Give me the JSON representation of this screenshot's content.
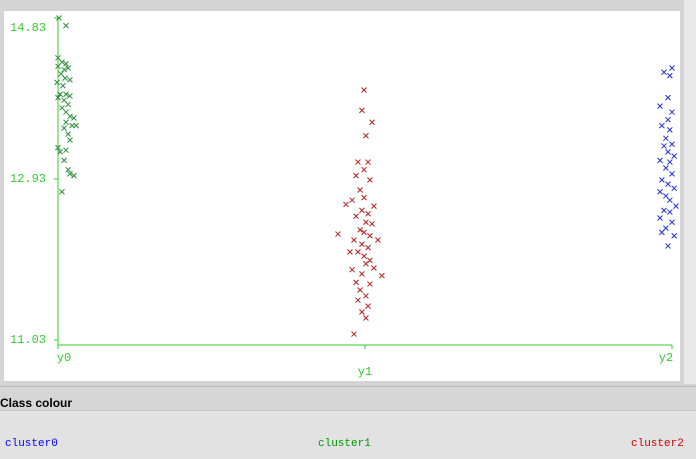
{
  "chart_data": {
    "type": "scatter",
    "xlim": [
      0,
      2
    ],
    "ylim": [
      11.03,
      14.83
    ],
    "xticks": [
      {
        "value": 0,
        "label": "y0"
      },
      {
        "value": 1,
        "label": "y1"
      },
      {
        "value": 2,
        "label": "y2"
      }
    ],
    "yticks": [
      11.03,
      12.93,
      14.83
    ],
    "axis_color": "#33cc33",
    "series": [
      {
        "color": "#2e8b3a",
        "x": [
          0.003,
          0.026,
          0,
          0.013,
          0.026,
          0,
          0.02,
          0.033,
          0.01,
          0.023,
          0.039,
          -0.003,
          0.016,
          0.007,
          0.026,
          0.039,
          0,
          0.02,
          0.033,
          0.013,
          0.026,
          0.039,
          0.052,
          0.026,
          0.02,
          0.046,
          0.059,
          0.033,
          0.039,
          0,
          0.007,
          0.026,
          0.02,
          0.033,
          0.052,
          0.039,
          0.013
        ],
        "values": [
          14.83,
          14.74,
          14.36,
          14.31,
          14.29,
          14.26,
          14.22,
          14.24,
          14.17,
          14.12,
          14.1,
          14.07,
          14.03,
          13.93,
          13.93,
          13.91,
          13.89,
          13.86,
          13.81,
          13.77,
          13.72,
          13.67,
          13.65,
          13.6,
          13.53,
          13.56,
          13.56,
          13.46,
          13.39,
          13.3,
          13.25,
          13.27,
          13.15,
          13.04,
          12.97,
          12.99,
          12.78
        ]
      },
      {
        "color": "#b22222",
        "x": [
          0.997,
          0.99,
          1.023,
          1.003,
          0.977,
          1.01,
          0.997,
          0.971,
          1.016,
          0.984,
          0.958,
          0.997,
          0.938,
          1.029,
          0.99,
          1.01,
          0.971,
          1.003,
          1.023,
          0.984,
          0.997,
          0.912,
          1.016,
          1.042,
          0.964,
          0.99,
          1.01,
          0.951,
          0.977,
          0.997,
          1.016,
          1.003,
          1.029,
          0.958,
          1.055,
          0.99,
          0.971,
          1.016,
          0.984,
          1.003,
          0.977,
          1.01,
          0.99,
          1.003,
          0.964
        ],
        "values": [
          13.98,
          13.74,
          13.6,
          13.44,
          13.13,
          13.13,
          13.04,
          12.97,
          12.92,
          12.8,
          12.68,
          12.71,
          12.63,
          12.61,
          12.56,
          12.52,
          12.49,
          12.42,
          12.4,
          12.33,
          12.3,
          12.28,
          12.26,
          12.21,
          12.21,
          12.16,
          12.12,
          12.07,
          12.07,
          12.02,
          11.97,
          11.93,
          11.88,
          11.86,
          11.79,
          11.81,
          11.71,
          11.69,
          11.62,
          11.55,
          11.5,
          11.43,
          11.36,
          11.29,
          11.1
        ]
      },
      {
        "color": "#2233cc",
        "x": [
          2.0,
          1.974,
          1.993,
          1.987,
          1.961,
          2.0,
          1.987,
          1.967,
          1.993,
          1.98,
          2.0,
          1.974,
          1.987,
          2.007,
          1.961,
          1.993,
          1.98,
          2.0,
          1.967,
          1.987,
          2.007,
          1.961,
          1.98,
          1.993,
          2.013,
          1.974,
          1.993,
          1.961,
          2.0,
          1.98,
          1.967,
          2.007,
          1.987
        ],
        "values": [
          14.24,
          14.19,
          14.15,
          13.89,
          13.79,
          13.72,
          13.63,
          13.56,
          13.51,
          13.41,
          13.34,
          13.32,
          13.25,
          13.2,
          13.15,
          13.13,
          13.06,
          12.99,
          12.92,
          12.87,
          12.82,
          12.78,
          12.73,
          12.68,
          12.61,
          12.56,
          12.54,
          12.47,
          12.42,
          12.35,
          12.3,
          12.26,
          12.14
        ]
      }
    ]
  },
  "class_colour": {
    "title": "Class colour",
    "items": [
      {
        "name": "cluster0",
        "color": "#0000ff"
      },
      {
        "name": "cluster1",
        "color": "#009900"
      },
      {
        "name": "cluster2",
        "color": "#cc0000"
      }
    ]
  }
}
